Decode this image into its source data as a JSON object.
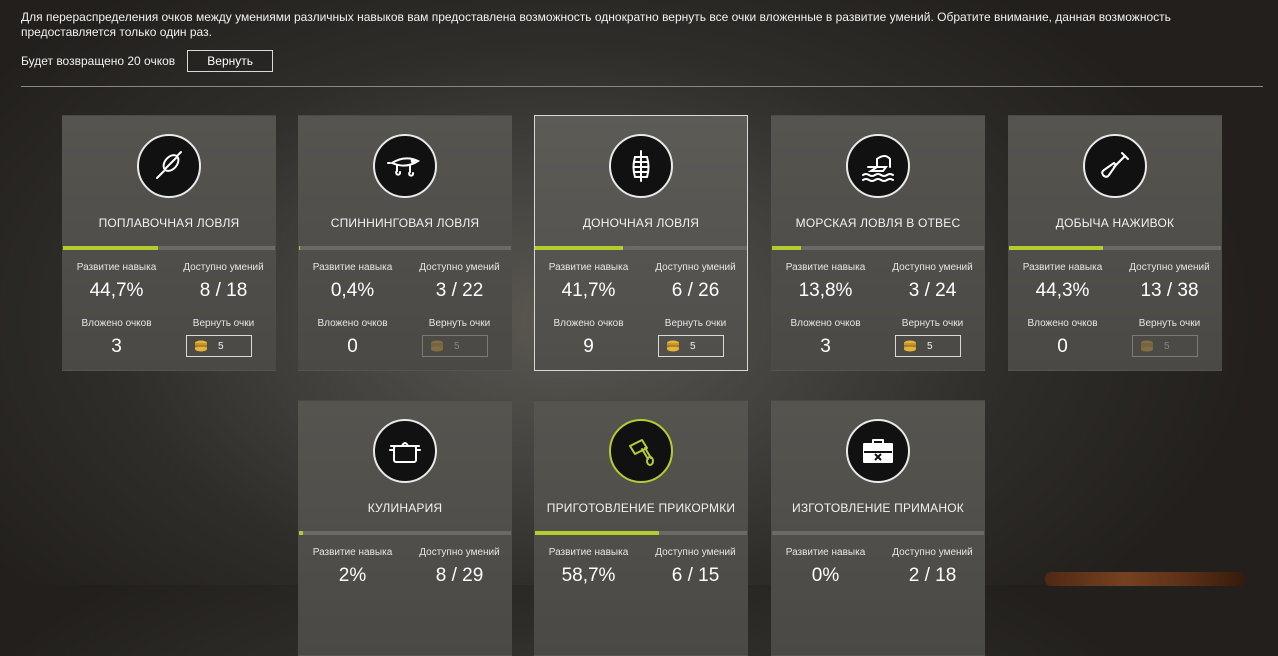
{
  "notice": "Для перераспределения очков между умениями различных навыков вам предоставлена возможность однократно вернуть все очки вложенные в развитие умений. Обратите внимание, данная возможность предоставляется только один раз.",
  "refund": {
    "text": "Будет возвращено 20 очков",
    "button_label": "Вернуть"
  },
  "labels": {
    "progress": "Развитие навыка",
    "available": "Доступно умений",
    "invested": "Вложено очков",
    "refund": "Вернуть очки"
  },
  "colors": {
    "accent": "#b5cc2f",
    "card_bg": "#55534e",
    "bar_bg": "#6c6a66"
  },
  "skills": [
    {
      "title": "ПОПЛАВОЧНАЯ ЛОВЛЯ",
      "icon": "float-bobber-icon",
      "progress_text": "44,7%",
      "progress": 0.447,
      "available": "8 / 18",
      "invested": "3",
      "refund_cost": "5",
      "refund_enabled": true
    },
    {
      "title": "СПИННИНГОВАЯ ЛОВЛЯ",
      "icon": "lure-wobbler-icon",
      "progress_text": "0,4%",
      "progress": 0.004,
      "available": "3 / 22",
      "invested": "0",
      "refund_cost": "5",
      "refund_enabled": false
    },
    {
      "title": "ДОНОЧНАЯ ЛОВЛЯ",
      "icon": "feeder-cage-icon",
      "progress_text": "41,7%",
      "progress": 0.417,
      "available": "6 / 26",
      "invested": "9",
      "refund_cost": "5",
      "refund_enabled": true
    },
    {
      "title": "МОРСКАЯ ЛОВЛЯ В ОТВЕС",
      "icon": "sea-boat-fishing-icon",
      "progress_text": "13,8%",
      "progress": 0.138,
      "available": "3 / 24",
      "invested": "3",
      "refund_cost": "5",
      "refund_enabled": true
    },
    {
      "title": "ДОБЫЧА НАЖИВОК",
      "icon": "shovel-icon",
      "progress_text": "44,3%",
      "progress": 0.443,
      "available": "13 / 38",
      "invested": "0",
      "refund_cost": "5",
      "refund_enabled": false
    },
    {
      "title": "КУЛИНАРИЯ",
      "icon": "cooking-pot-icon",
      "progress_text": "2%",
      "progress": 0.02,
      "available": "8 / 29"
    },
    {
      "title": "ПРИГОТОВЛЕНИЕ ПРИКОРМКИ",
      "icon": "mixer-icon",
      "progress_text": "58,7%",
      "progress": 0.587,
      "available": "6 / 15"
    },
    {
      "title": "ИЗГОТОВЛЕНИЕ ПРИМАНОК",
      "icon": "toolbox-icon",
      "progress_text": "0%",
      "progress": 0.0,
      "available": "2 / 18"
    }
  ]
}
